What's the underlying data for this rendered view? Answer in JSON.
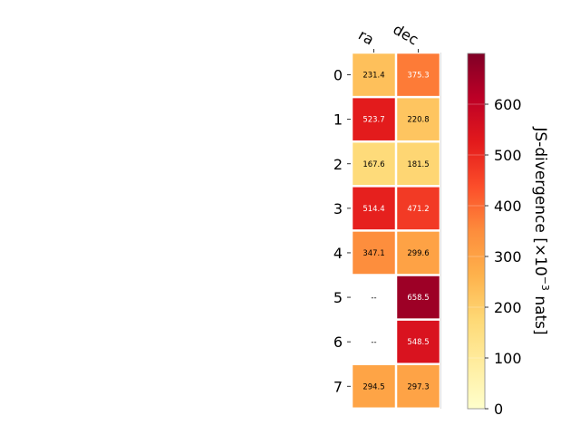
{
  "chart_data": {
    "type": "heatmap",
    "columns": [
      "ra",
      "dec"
    ],
    "rows": [
      "0",
      "1",
      "2",
      "3",
      "4",
      "5",
      "6",
      "7"
    ],
    "values": [
      [
        231.4,
        375.3
      ],
      [
        523.7,
        220.8
      ],
      [
        167.6,
        181.5
      ],
      [
        514.4,
        471.2
      ],
      [
        347.1,
        299.6
      ],
      [
        null,
        658.5
      ],
      [
        null,
        548.5
      ],
      [
        294.5,
        297.3
      ]
    ],
    "missing_label": "--",
    "colorbar": {
      "label_main": "JS-divergence [×10",
      "label_exp": "−3",
      "label_unit": " nats]",
      "range": [
        0,
        700
      ],
      "ticks": [
        "0",
        "100",
        "200",
        "300",
        "400",
        "500",
        "600"
      ],
      "colormap": "YlOrRd"
    }
  }
}
